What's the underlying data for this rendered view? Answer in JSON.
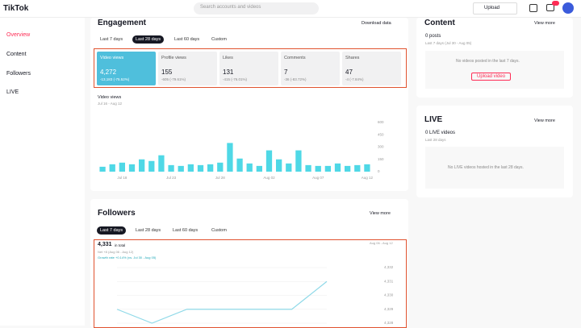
{
  "header": {
    "logo": "TikTok",
    "search": "Search accounts and videos",
    "upload": "Upload"
  },
  "sidebar": {
    "items": [
      "Overview",
      "Content",
      "Followers",
      "LIVE"
    ]
  },
  "engagement": {
    "title": "Engagement",
    "download": "Download data",
    "tabs": [
      "Last 7 days",
      "Last 28 days",
      "Last 60 days",
      "Custom"
    ],
    "metrics": [
      {
        "label": "Video views",
        "value": "4,272",
        "change": "-13,183 (-75.52%)"
      },
      {
        "label": "Profile views",
        "value": "155",
        "change": "-605 (-79.61%)"
      },
      {
        "label": "Likes",
        "value": "131",
        "change": "-415 (-76.01%)"
      },
      {
        "label": "Comments",
        "value": "7",
        "change": "-36 (-83.72%)"
      },
      {
        "label": "Shares",
        "value": "47",
        "change": "-4 (-7.84%)"
      }
    ]
  },
  "content": {
    "title": "Content",
    "view_more": "View more",
    "count": "0 posts",
    "range": "Last 7 days (Jul 30 - Aug 05)",
    "empty": "No videos posted in the last 7 days.",
    "button": "Upload video"
  },
  "live": {
    "title": "LIVE",
    "view_more": "View more",
    "count": "0 LIVE videos",
    "range": "Last 28 days",
    "empty": "No LIVE videos hosted in the last 28 days."
  },
  "followers": {
    "title": "Followers",
    "view_more": "View more",
    "tabs": [
      "Last 7 days",
      "Last 28 days",
      "Last 60 days",
      "Custom"
    ],
    "total": "4,331",
    "total_label": "in total",
    "net": "Net +8 (Aug 06 - Aug 12)",
    "growth": "Growth rate +0.14% (vs. Jul 30 - Aug 05)"
  },
  "chart_data": [
    {
      "type": "bar",
      "title": "Video views",
      "subtitle": "Jul 16 - Aug 12",
      "color": "#4fd8e6",
      "categories": [
        null,
        null,
        "Jul 18",
        null,
        null,
        null,
        null,
        "Jul 23",
        null,
        null,
        null,
        null,
        "Jul 28",
        null,
        null,
        null,
        null,
        "Aug 02",
        null,
        null,
        null,
        null,
        "Aug 07",
        null,
        null,
        null,
        null,
        "Aug 12"
      ],
      "values": [
        60,
        90,
        110,
        90,
        150,
        130,
        200,
        80,
        70,
        90,
        80,
        90,
        110,
        350,
        160,
        100,
        70,
        260,
        150,
        100,
        260,
        80,
        70,
        70,
        100,
        70,
        80,
        90
      ],
      "ylim": [
        0,
        600
      ],
      "yticks": [
        0,
        150,
        300,
        450,
        600
      ],
      "grid": false
    },
    {
      "type": "line",
      "subtitle": "Aug 06 - Aug 12",
      "color": "#8fd9e8",
      "values": [
        4329,
        4328,
        4329,
        4329,
        4329,
        4329,
        4331
      ],
      "ylim": [
        4328,
        4332
      ],
      "yticks": [
        {
          "value": 4328,
          "label": "4,328"
        },
        {
          "value": 4329,
          "label": "4,329"
        },
        {
          "value": 4330,
          "label": "4,330"
        },
        {
          "value": 4331,
          "label": "4,331"
        },
        {
          "value": 4332,
          "label": "4,332"
        }
      ],
      "grid": true
    }
  ]
}
